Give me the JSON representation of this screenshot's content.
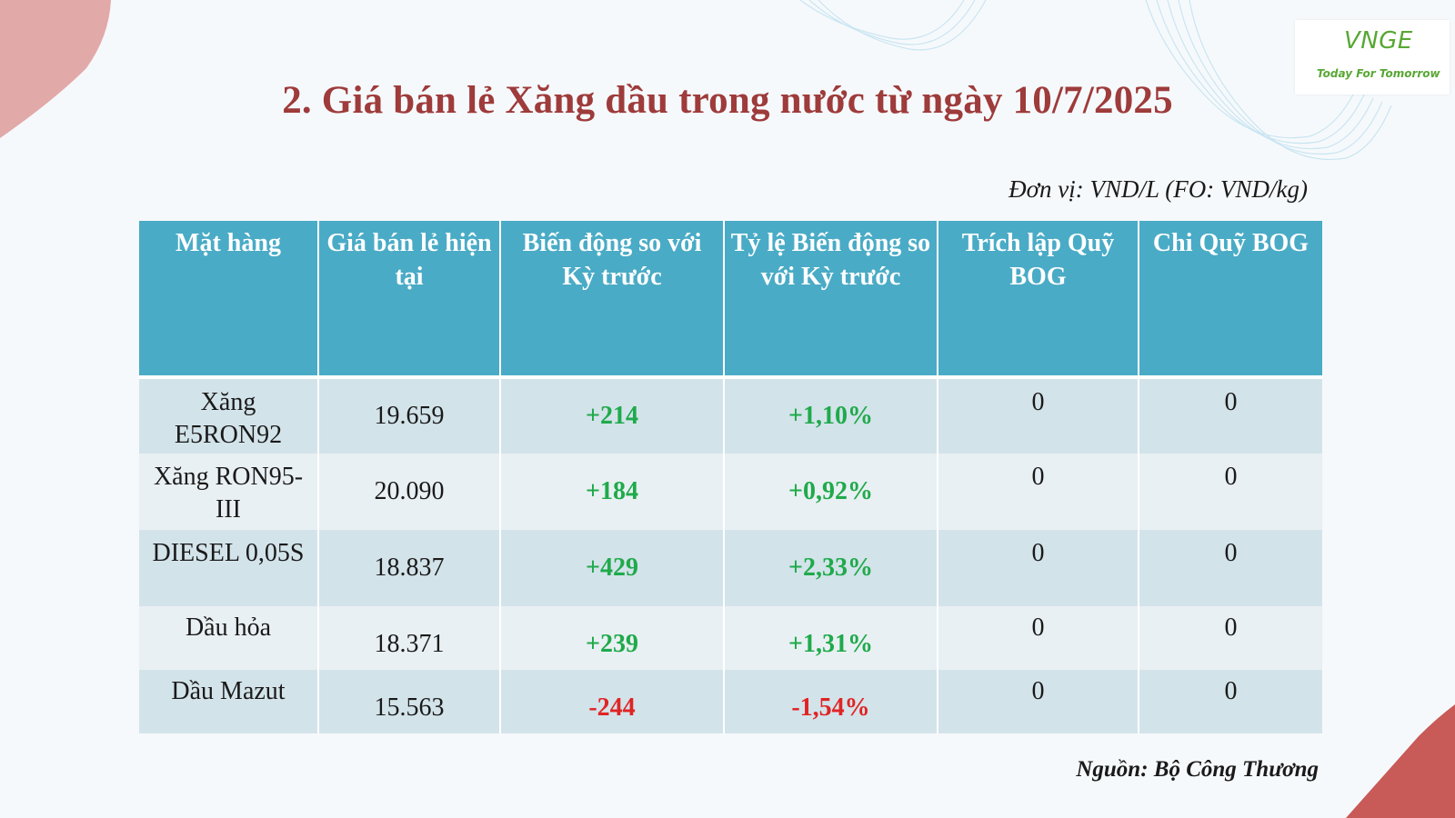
{
  "title": "2. Giá bán lẻ Xăng dầu trong nước từ ngày 10/7/2025",
  "unit_note": "Đơn vị: VND/L (FO: VND/kg)",
  "source_note": "Nguồn: Bộ Công Thương",
  "logo": {
    "mark": "VNGE",
    "tagline": "Today For Tomorrow"
  },
  "colors": {
    "title": "#9e3b3b",
    "header_bg": "#4aabc6",
    "row_dark": "#d3e3ea",
    "row_light": "#e9f0f3",
    "positive": "#1faa4b",
    "negative": "#e02424"
  },
  "table": {
    "headers": [
      "Mặt hàng",
      "Giá bán lẻ hiện tại",
      "Biến động so với Kỳ trước",
      "Tỷ lệ Biến động so với Kỳ trước",
      "Trích lập Quỹ BOG",
      "Chi Quỹ BOG"
    ],
    "rows": [
      {
        "item": "Xăng E5RON92",
        "price": "19.659",
        "change": "+214",
        "pct": "+1,10%",
        "bog_in": "0",
        "bog_out": "0",
        "trend": "up"
      },
      {
        "item": "Xăng RON95-III",
        "price": "20.090",
        "change": "+184",
        "pct": "+0,92%",
        "bog_in": "0",
        "bog_out": "0",
        "trend": "up"
      },
      {
        "item": "DIESEL 0,05S",
        "price": "18.837",
        "change": "+429",
        "pct": "+2,33%",
        "bog_in": "0",
        "bog_out": "0",
        "trend": "up"
      },
      {
        "item": "Dầu hỏa",
        "price": "18.371",
        "change": "+239",
        "pct": "+1,31%",
        "bog_in": "0",
        "bog_out": "0",
        "trend": "up"
      },
      {
        "item": "Dầu Mazut",
        "price": "15.563",
        "change": "-244",
        "pct": "-1,54%",
        "bog_in": "0",
        "bog_out": "0",
        "trend": "down"
      }
    ]
  }
}
